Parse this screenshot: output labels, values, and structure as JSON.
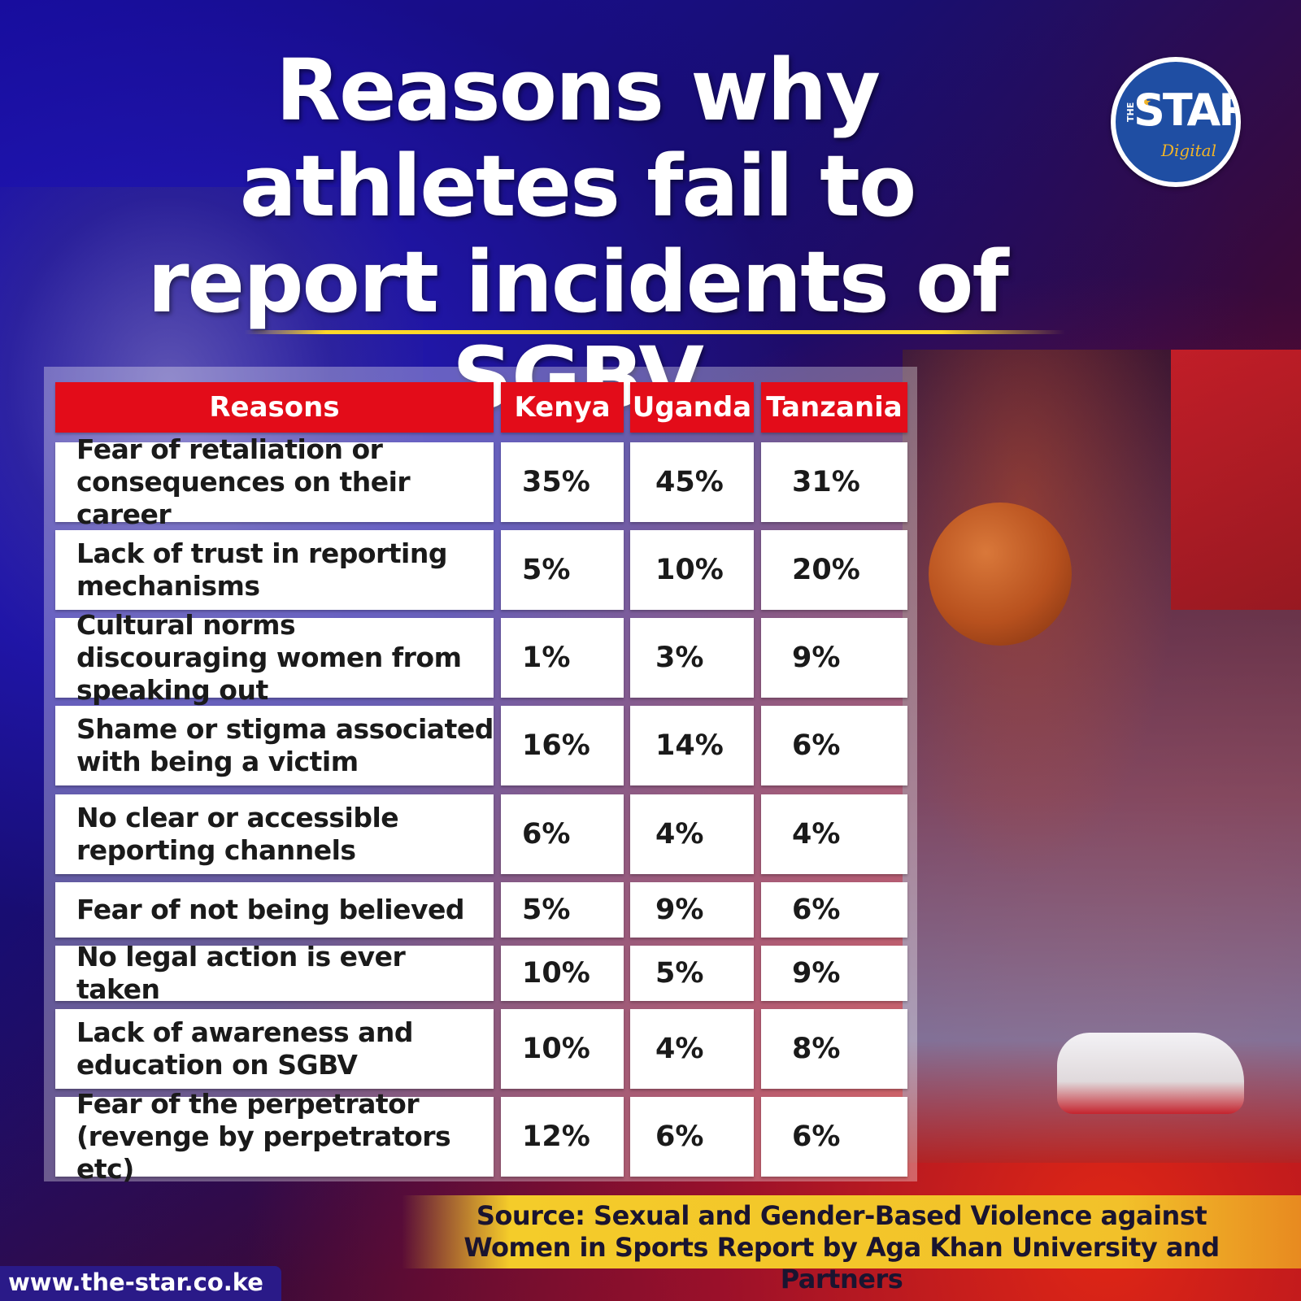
{
  "title": "Reasons why athletes fail to report incidents of SGBV",
  "logo": {
    "the": "THE",
    "star": "STAR",
    "digital": "Digital"
  },
  "chart_data": {
    "type": "table",
    "title": "Reasons why athletes fail to report incidents of SGBV",
    "columns": [
      "Reasons",
      "Kenya",
      "Uganda",
      "Tanzania"
    ],
    "rows": [
      {
        "reason": "Fear of retaliation or consequences on their career",
        "values": [
          "35%",
          "45%",
          "31%"
        ]
      },
      {
        "reason": "Lack of trust in reporting mechanisms",
        "values": [
          "5%",
          "10%",
          "20%"
        ]
      },
      {
        "reason": "Cultural norms discouraging women from speaking out",
        "values": [
          "1%",
          "3%",
          "9%"
        ]
      },
      {
        "reason": "Shame or stigma associated with being a victim",
        "values": [
          "16%",
          "14%",
          "6%"
        ]
      },
      {
        "reason": "No clear or accessible reporting channels",
        "values": [
          "6%",
          "4%",
          "4%"
        ]
      },
      {
        "reason": "Fear of not being believed",
        "values": [
          "5%",
          "9%",
          "6%"
        ]
      },
      {
        "reason": "No legal action is ever taken",
        "values": [
          "10%",
          "5%",
          "9%"
        ]
      },
      {
        "reason": "Lack of awareness and education on SGBV",
        "values": [
          "10%",
          "4%",
          "8%"
        ]
      },
      {
        "reason": "Fear of the perpetrator (revenge by perpetrators etc)",
        "values": [
          "12%",
          "6%",
          "6%"
        ]
      }
    ]
  },
  "source": "Source: Sexual and Gender-Based Violence against Women in Sports Report by Aga Khan University and Partners",
  "website": "www.the-star.co.ke",
  "colors": {
    "header_red": "#e30c19",
    "accent_yellow": "#ffd72a",
    "logo_blue": "#1f4ea3"
  }
}
